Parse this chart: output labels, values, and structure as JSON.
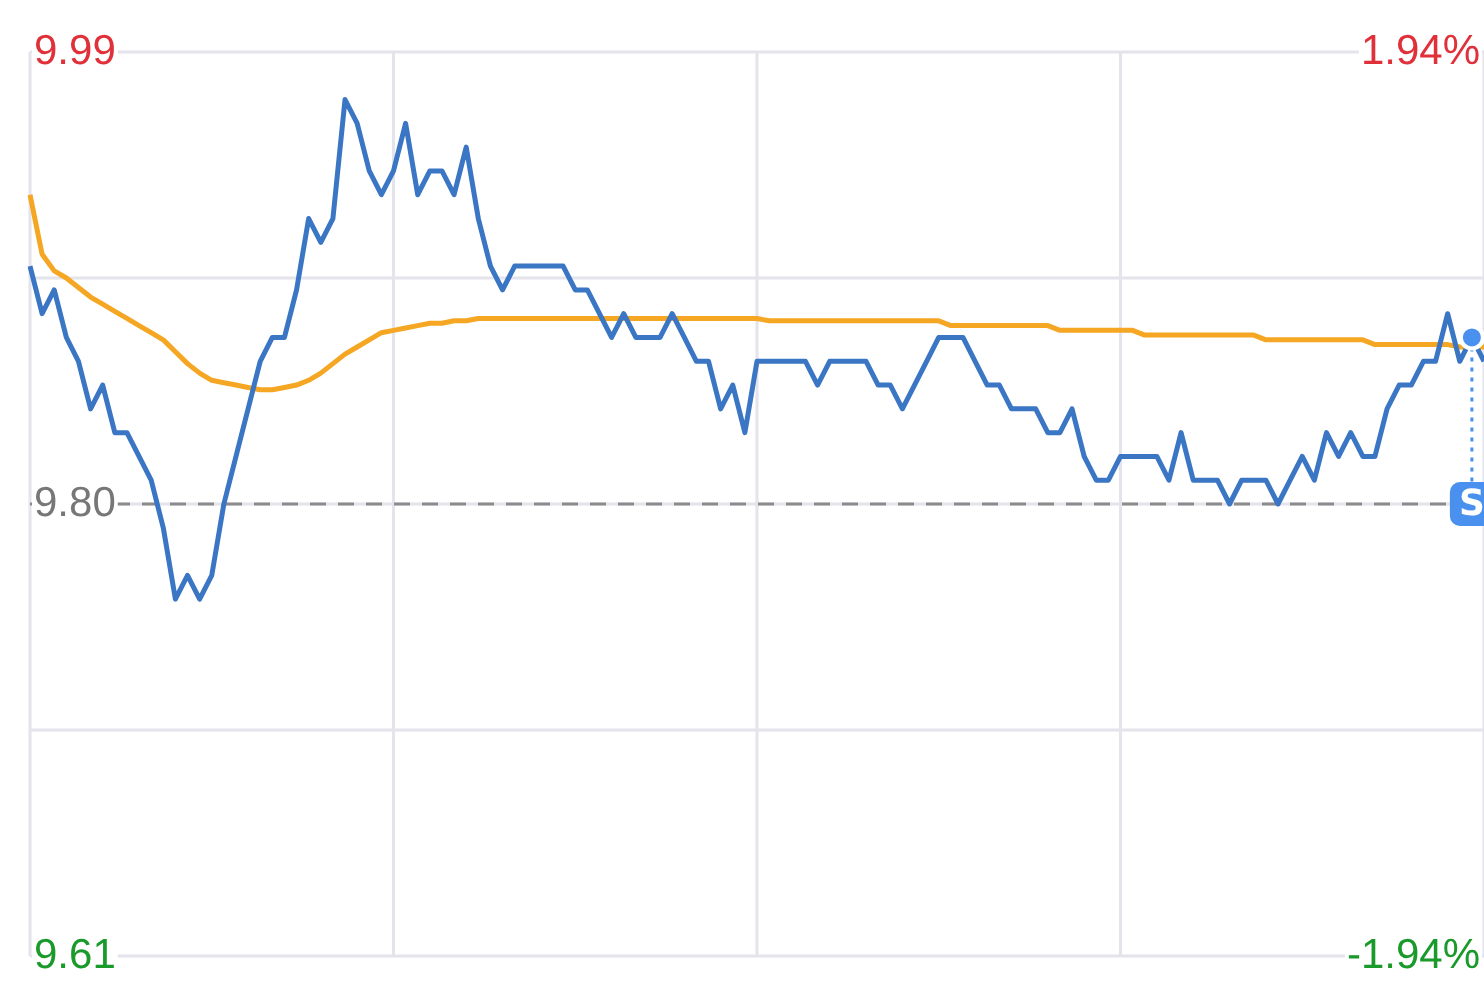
{
  "chart_data": {
    "type": "line",
    "categories": [
      null,
      null,
      null,
      null,
      null,
      null,
      null,
      null,
      null,
      null,
      null,
      null,
      null,
      null,
      null,
      null,
      null,
      null,
      null,
      null,
      null,
      null,
      null,
      null,
      null,
      null,
      null,
      null,
      null,
      null,
      null,
      null,
      null,
      null,
      null,
      null,
      null,
      null,
      null,
      null,
      null,
      null,
      null,
      null,
      null,
      null,
      null,
      null,
      null,
      null,
      null,
      null,
      null,
      null,
      null,
      null,
      null,
      null,
      null,
      null,
      null,
      null,
      null,
      null,
      null,
      null,
      null,
      null,
      null,
      null,
      null,
      null,
      null,
      null,
      null,
      null,
      null,
      null,
      null,
      null,
      null,
      null,
      null,
      null,
      null,
      null,
      null,
      null,
      null,
      null,
      null,
      null,
      null,
      null,
      null,
      null,
      null,
      null,
      null,
      null,
      null,
      null,
      null,
      null,
      null,
      null,
      null,
      null,
      null,
      null,
      null,
      null,
      null,
      null,
      null,
      null,
      null,
      null,
      null,
      null,
      null
    ],
    "series": [
      {
        "color": "#3a76c4",
        "values": [
          9.9,
          9.88,
          9.89,
          9.87,
          9.86,
          9.84,
          9.85,
          9.83,
          9.83,
          9.82,
          9.81,
          9.79,
          9.76,
          9.77,
          9.76,
          9.77,
          9.8,
          9.82,
          9.84,
          9.86,
          9.87,
          9.87,
          9.89,
          9.92,
          9.91,
          9.92,
          9.97,
          9.96,
          9.94,
          9.93,
          9.94,
          9.96,
          9.93,
          9.94,
          9.94,
          9.93,
          9.95,
          9.92,
          9.9,
          9.89,
          9.9,
          9.9,
          9.9,
          9.9,
          9.9,
          9.89,
          9.89,
          9.88,
          9.87,
          9.88,
          9.87,
          9.87,
          9.87,
          9.88,
          9.87,
          9.86,
          9.86,
          9.84,
          9.85,
          9.83,
          9.86,
          9.86,
          9.86,
          9.86,
          9.86,
          9.85,
          9.86,
          9.86,
          9.86,
          9.86,
          9.85,
          9.85,
          9.84,
          9.85,
          9.86,
          9.87,
          9.87,
          9.87,
          9.86,
          9.85,
          9.85,
          9.84,
          9.84,
          9.84,
          9.83,
          9.83,
          9.84,
          9.82,
          9.81,
          9.81,
          9.82,
          9.82,
          9.82,
          9.82,
          9.81,
          9.83,
          9.81,
          9.81,
          9.81,
          9.8,
          9.81,
          9.81,
          9.81,
          9.8,
          9.81,
          9.82,
          9.81,
          9.83,
          9.82,
          9.83,
          9.82,
          9.82,
          9.84,
          9.85,
          9.85,
          9.86,
          9.86,
          9.88,
          9.86,
          9.87,
          9.86
        ]
      },
      {
        "color": "#f5a623",
        "values": [
          9.93,
          9.905,
          9.898,
          9.895,
          9.891,
          9.887,
          9.884,
          9.881,
          9.878,
          9.875,
          9.872,
          9.869,
          9.864,
          9.859,
          9.855,
          9.852,
          9.851,
          9.85,
          9.849,
          9.848,
          9.848,
          9.849,
          9.85,
          9.852,
          9.855,
          9.859,
          9.863,
          9.866,
          9.869,
          9.872,
          9.873,
          9.874,
          9.875,
          9.876,
          9.876,
          9.877,
          9.877,
          9.878,
          9.878,
          9.878,
          9.878,
          9.878,
          9.878,
          9.878,
          9.878,
          9.878,
          9.878,
          9.878,
          9.878,
          9.878,
          9.878,
          9.878,
          9.878,
          9.878,
          9.878,
          9.878,
          9.878,
          9.878,
          9.878,
          9.878,
          9.878,
          9.877,
          9.877,
          9.877,
          9.877,
          9.877,
          9.877,
          9.877,
          9.877,
          9.877,
          9.877,
          9.877,
          9.877,
          9.877,
          9.877,
          9.877,
          9.875,
          9.875,
          9.875,
          9.875,
          9.875,
          9.875,
          9.875,
          9.875,
          9.875,
          9.873,
          9.873,
          9.873,
          9.873,
          9.873,
          9.873,
          9.873,
          9.871,
          9.871,
          9.871,
          9.871,
          9.871,
          9.871,
          9.871,
          9.871,
          9.871,
          9.871,
          9.869,
          9.869,
          9.869,
          9.869,
          9.869,
          9.869,
          9.869,
          9.869,
          9.869,
          9.867,
          9.867,
          9.867,
          9.867,
          9.867,
          9.867,
          9.867,
          9.866,
          9.866,
          9.866
        ]
      }
    ],
    "ylim": [
      9.61,
      9.99
    ],
    "yticks": [
      9.99,
      {
        "value": 9.895,
        "label": null
      },
      {
        "value": 9.8,
        "label": "9.80"
      },
      {
        "value": 9.705,
        "label": null
      },
      9.61
    ],
    "y2lim": [
      -1.94,
      1.94
    ],
    "y2ticks": [
      {
        "value": 1.94,
        "label": "1.94%"
      },
      {
        "value": -1.94,
        "label": "-1.94%"
      }
    ],
    "ref_lines": [
      {
        "axis": "y",
        "value": 9.8,
        "label": null,
        "color": "#8c8c8c",
        "line_style": "dashed"
      }
    ],
    "annotations": [
      {
        "text": "S",
        "y": 9.8
      }
    ],
    "grid": true,
    "legend": false,
    "marker": "none",
    "line_style": "solid"
  }
}
